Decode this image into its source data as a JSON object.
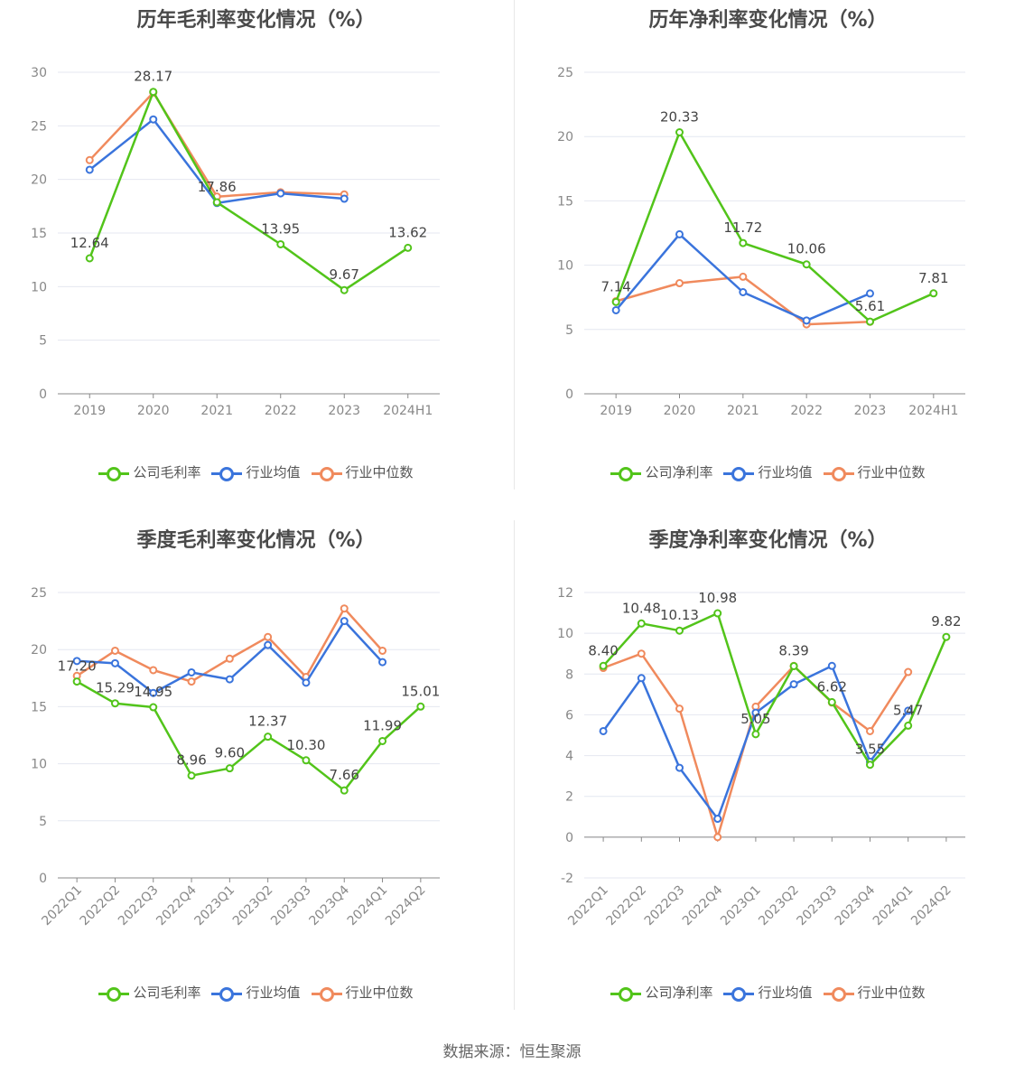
{
  "footer": "数据来源：恒生聚源",
  "colors": {
    "company": "#52c41a",
    "industry_avg": "#3a74dc",
    "industry_median": "#f08a5d"
  },
  "chart_data": [
    {
      "type": "line",
      "title": "历年毛利率变化情况（%）",
      "categories": [
        "2019",
        "2020",
        "2021",
        "2022",
        "2023",
        "2024H1"
      ],
      "ylim": [
        0,
        30
      ],
      "yticks": [
        0,
        5,
        10,
        15,
        20,
        25,
        30
      ],
      "series": [
        {
          "name": "公司毛利率",
          "values": [
            12.64,
            28.17,
            17.86,
            13.95,
            9.67,
            13.62
          ],
          "labels": [
            "12.64",
            "28.17",
            "17.86",
            "13.95",
            "9.67",
            "13.62"
          ]
        },
        {
          "name": "行业均值",
          "values": [
            20.9,
            25.6,
            17.8,
            18.7,
            18.2,
            null
          ]
        },
        {
          "name": "行业中位数",
          "values": [
            21.8,
            28.1,
            18.4,
            18.8,
            18.6,
            null
          ]
        }
      ]
    },
    {
      "type": "line",
      "title": "历年净利率变化情况（%）",
      "categories": [
        "2019",
        "2020",
        "2021",
        "2022",
        "2023",
        "2024H1"
      ],
      "ylim": [
        0,
        25
      ],
      "yticks": [
        0,
        5,
        10,
        15,
        20,
        25
      ],
      "series": [
        {
          "name": "公司净利率",
          "values": [
            7.14,
            20.33,
            11.72,
            10.06,
            5.61,
            7.81
          ],
          "labels": [
            "7.14",
            "20.33",
            "11.72",
            "10.06",
            "5.61",
            "7.81"
          ]
        },
        {
          "name": "行业均值",
          "values": [
            6.5,
            12.4,
            7.9,
            5.7,
            7.8,
            null
          ]
        },
        {
          "name": "行业中位数",
          "values": [
            7.2,
            8.6,
            9.1,
            5.4,
            5.6,
            null
          ]
        }
      ]
    },
    {
      "type": "line",
      "title": "季度毛利率变化情况（%）",
      "categories": [
        "2022Q1",
        "2022Q2",
        "2022Q3",
        "2022Q4",
        "2023Q1",
        "2023Q2",
        "2023Q3",
        "2023Q4",
        "2024Q1",
        "2024Q2"
      ],
      "ylim": [
        0,
        25
      ],
      "yticks": [
        0,
        5,
        10,
        15,
        20,
        25
      ],
      "series": [
        {
          "name": "公司毛利率",
          "values": [
            17.2,
            15.29,
            14.95,
            8.96,
            9.6,
            12.37,
            10.3,
            7.66,
            11.99,
            15.01
          ],
          "labels": [
            "17.20",
            "15.29",
            "14.95",
            "8.96",
            "9.60",
            "12.37",
            "10.30",
            "7.66",
            "11.99",
            "15.01"
          ]
        },
        {
          "name": "行业均值",
          "values": [
            19.0,
            18.8,
            16.2,
            18.0,
            17.4,
            20.4,
            17.1,
            22.5,
            18.9,
            null
          ]
        },
        {
          "name": "行业中位数",
          "values": [
            17.7,
            19.9,
            18.2,
            17.2,
            19.2,
            21.1,
            17.6,
            23.6,
            19.9,
            null
          ]
        }
      ]
    },
    {
      "type": "line",
      "title": "季度净利率变化情况（%）",
      "categories": [
        "2022Q1",
        "2022Q2",
        "2022Q3",
        "2022Q4",
        "2023Q1",
        "2023Q2",
        "2023Q3",
        "2023Q4",
        "2024Q1",
        "2024Q2"
      ],
      "ylim": [
        -2,
        12
      ],
      "yticks": [
        -2,
        0,
        2,
        4,
        6,
        8,
        10,
        12
      ],
      "series": [
        {
          "name": "公司净利率",
          "values": [
            8.4,
            10.48,
            10.13,
            10.98,
            5.05,
            8.39,
            6.62,
            3.55,
            5.47,
            9.82
          ],
          "labels": [
            "8.40",
            "10.48",
            "10.13",
            "10.98",
            "5.05",
            "8.39",
            "6.62",
            "3.55",
            "5.47",
            "9.82"
          ]
        },
        {
          "name": "行业均值",
          "values": [
            5.2,
            7.8,
            3.4,
            0.9,
            6.1,
            7.5,
            8.4,
            3.7,
            6.2,
            null
          ]
        },
        {
          "name": "行业中位数",
          "values": [
            8.3,
            9.0,
            6.3,
            0.0,
            6.4,
            8.4,
            6.6,
            5.2,
            8.1,
            null
          ]
        }
      ]
    }
  ]
}
